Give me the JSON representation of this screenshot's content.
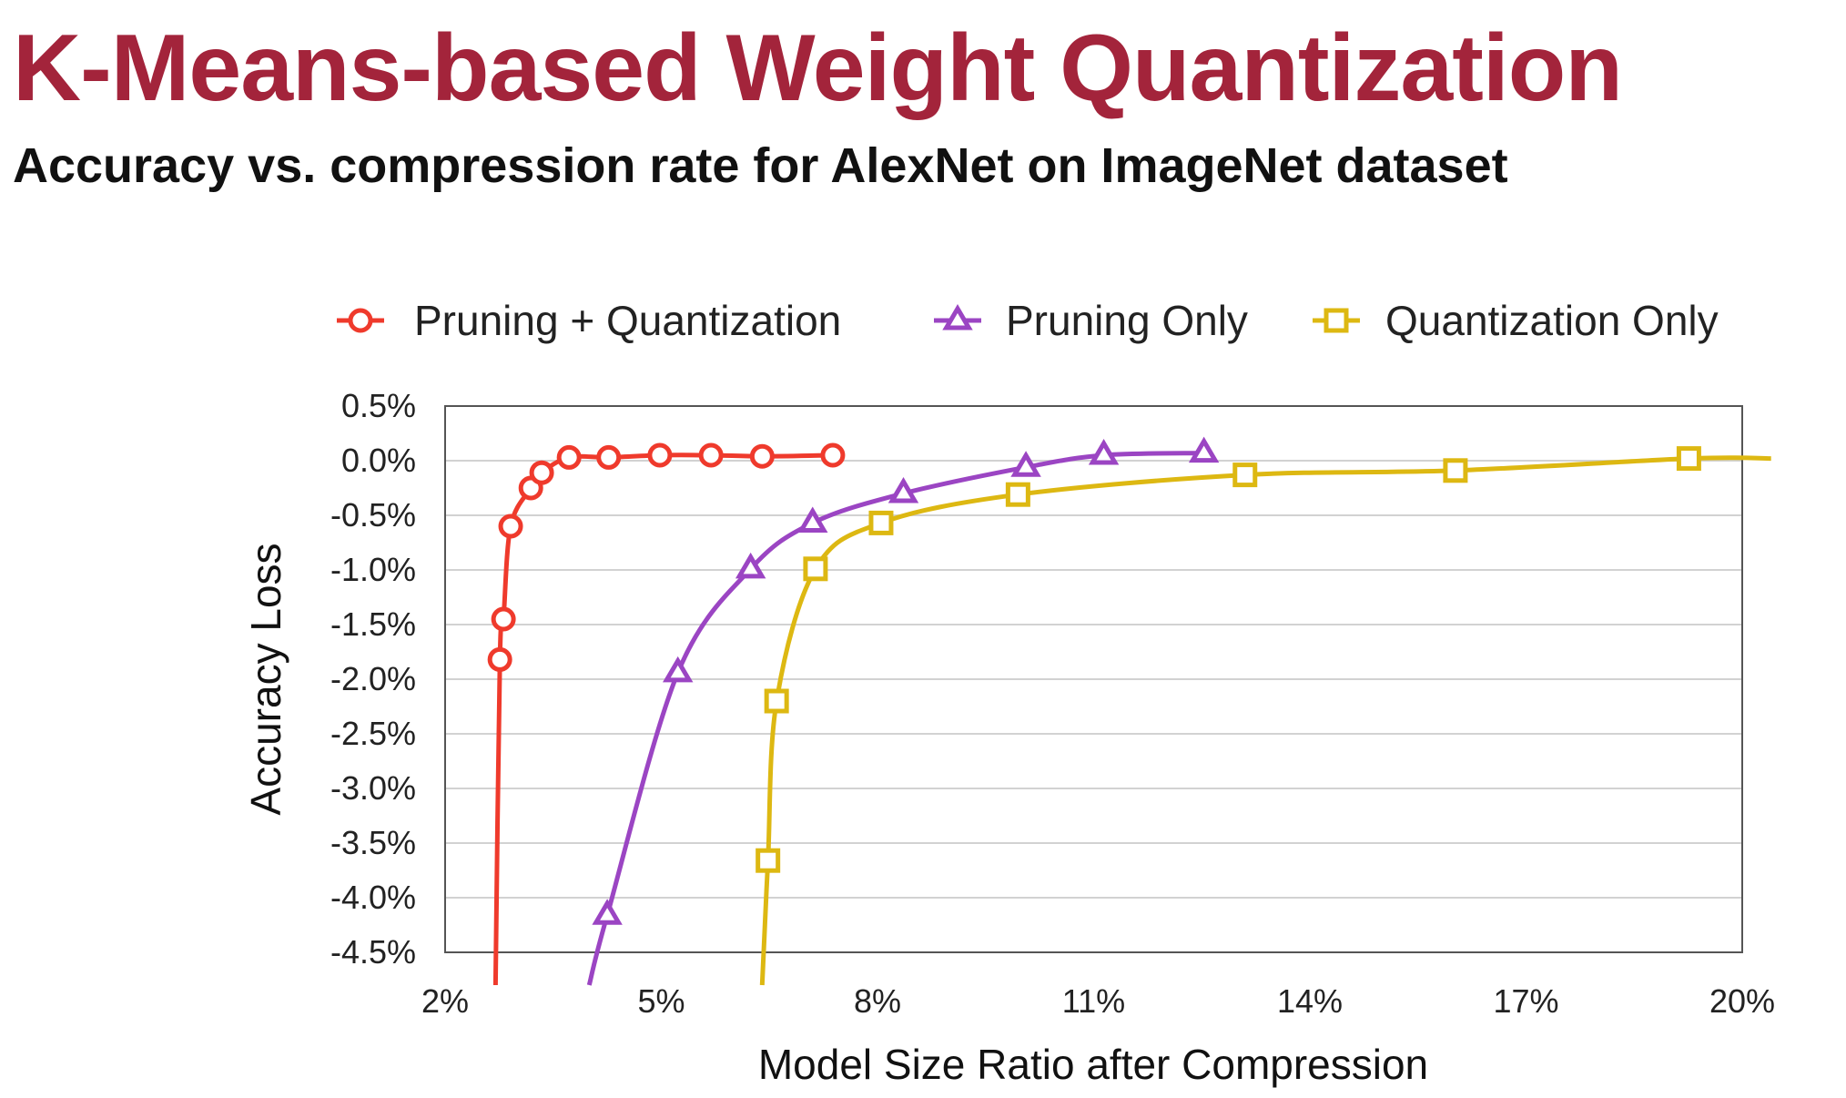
{
  "slide": {
    "title": "K-Means-based Weight Quantization",
    "subtitle": "Accuracy vs. compression rate for AlexNet on ImageNet dataset"
  },
  "chart_data": {
    "type": "line",
    "title": "",
    "xlabel": "Model Size Ratio after Compression",
    "ylabel": "Accuracy Loss",
    "xlim": [
      2,
      20
    ],
    "ylim": [
      -4.5,
      0.5
    ],
    "x_ticks": [
      2,
      5,
      8,
      11,
      14,
      17,
      20
    ],
    "x_tick_labels": [
      "2%",
      "5%",
      "8%",
      "11%",
      "14%",
      "17%",
      "20%"
    ],
    "y_ticks": [
      0.5,
      0.0,
      -0.5,
      -1.0,
      -1.5,
      -2.0,
      -2.5,
      -3.0,
      -3.5,
      -4.0,
      -4.5
    ],
    "y_tick_labels": [
      "0.5%",
      "0.0%",
      "-0.5%",
      "-1.0%",
      "-1.5%",
      "-2.0%",
      "-2.5%",
      "-3.0%",
      "-3.5%",
      "-4.0%",
      "-4.5%"
    ],
    "grid": "horizontal",
    "legend_position": "top",
    "series": [
      {
        "name": "Pruning + Quantization",
        "marker": "circle",
        "color": "#ef3a2c",
        "points": [
          [
            2.76,
            -1.82
          ],
          [
            2.81,
            -1.45
          ],
          [
            2.91,
            -0.6
          ],
          [
            3.19,
            -0.25
          ],
          [
            3.34,
            -0.11
          ],
          [
            3.72,
            0.03
          ],
          [
            4.27,
            0.03
          ],
          [
            4.98,
            0.05
          ],
          [
            5.69,
            0.05
          ],
          [
            6.4,
            0.04
          ],
          [
            7.38,
            0.05
          ]
        ],
        "curve_start": [
          2.7,
          -4.8
        ]
      },
      {
        "name": "Pruning Only",
        "marker": "triangle",
        "color": "#9b45c3",
        "points": [
          [
            4.25,
            -4.16
          ],
          [
            5.23,
            -1.94
          ],
          [
            6.24,
            -0.99
          ],
          [
            7.1,
            -0.57
          ],
          [
            8.36,
            -0.3
          ],
          [
            10.06,
            -0.06
          ],
          [
            11.14,
            0.05
          ],
          [
            12.53,
            0.07
          ]
        ],
        "curve_start": [
          4.0,
          -4.8
        ]
      },
      {
        "name": "Quantization Only",
        "marker": "square",
        "color": "#ddb812",
        "points": [
          [
            6.48,
            -3.66
          ],
          [
            6.6,
            -2.2
          ],
          [
            7.14,
            -0.99
          ],
          [
            8.05,
            -0.57
          ],
          [
            9.95,
            -0.31
          ],
          [
            13.1,
            -0.13
          ],
          [
            16.02,
            -0.09
          ],
          [
            19.26,
            0.02
          ]
        ],
        "curve_start": [
          6.4,
          -4.8
        ],
        "curve_end": [
          20.4,
          0.02
        ]
      }
    ]
  }
}
